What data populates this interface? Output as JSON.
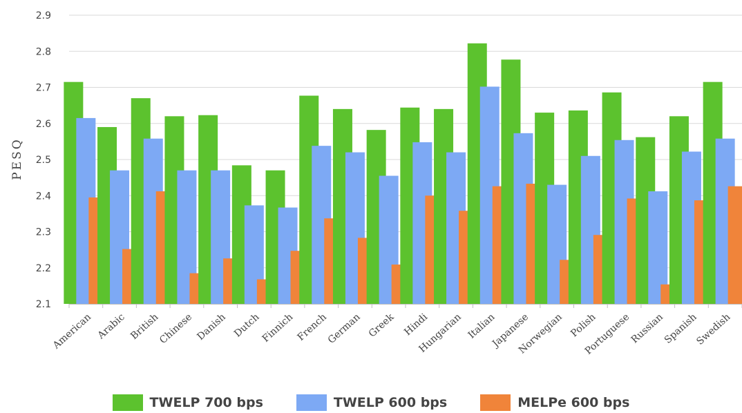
{
  "chart_data": {
    "type": "bar",
    "ylabel": "PESQ",
    "xlabel": "",
    "ylim": [
      2.1,
      2.9
    ],
    "yticks": [
      "2.1",
      "2.2",
      "2.3",
      "2.4",
      "2.5",
      "2.6",
      "2.7",
      "2.8",
      "2.9"
    ],
    "grid": true,
    "legend_position": "bottom",
    "categories": [
      "American",
      "Arabic",
      "British",
      "Chinese",
      "Danish",
      "Dutch",
      "Finnich",
      "French",
      "German",
      "Greek",
      "Hindi",
      "Hungarian",
      "Italian",
      "Japanese",
      "Norwegian",
      "Polish",
      "Portuguese",
      "Russian",
      "Spanish",
      "Swedish"
    ],
    "series": [
      {
        "name": "TWELP 700 bps",
        "color": "#5cc22e",
        "values": [
          2.715,
          2.59,
          2.67,
          2.62,
          2.623,
          2.484,
          2.47,
          2.677,
          2.64,
          2.582,
          2.644,
          2.64,
          2.822,
          2.777,
          2.63,
          2.636,
          2.686,
          2.562,
          2.62,
          2.715
        ]
      },
      {
        "name": "TWELP 600 bps",
        "color": "#7da9f4",
        "values": [
          2.615,
          2.47,
          2.558,
          2.47,
          2.47,
          2.373,
          2.367,
          2.538,
          2.52,
          2.455,
          2.548,
          2.52,
          2.702,
          2.573,
          2.43,
          2.51,
          2.554,
          2.412,
          2.522,
          2.558
        ]
      },
      {
        "name": "MELPe 600 bps",
        "color": "#f0843a",
        "values": [
          2.395,
          2.252,
          2.412,
          2.185,
          2.226,
          2.168,
          2.247,
          2.337,
          2.283,
          2.209,
          2.4,
          2.358,
          2.426,
          2.433,
          2.222,
          2.291,
          2.392,
          2.154,
          2.387,
          2.426
        ]
      }
    ]
  }
}
